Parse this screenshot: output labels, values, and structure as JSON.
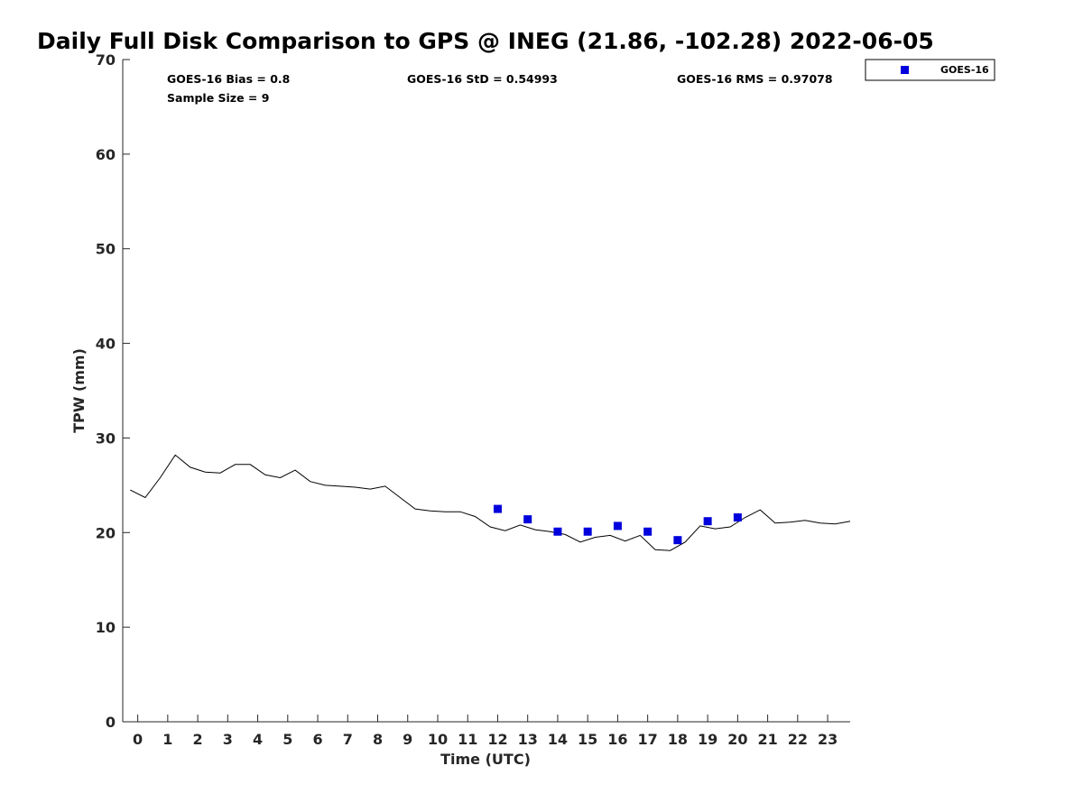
{
  "chart_data": {
    "type": "line",
    "title": "Daily Full Disk Comparison to GPS @ INEG (21.86, -102.28) 2022-06-05",
    "xlabel": "Time (UTC)",
    "ylabel": "TPW (mm)",
    "xlim": [
      -0.5,
      23.75
    ],
    "ylim": [
      0,
      70
    ],
    "xticks": [
      0,
      1,
      2,
      3,
      4,
      5,
      6,
      7,
      8,
      9,
      10,
      11,
      12,
      13,
      14,
      15,
      16,
      17,
      18,
      19,
      20,
      21,
      22,
      23
    ],
    "yticks": [
      0,
      10,
      20,
      30,
      40,
      50,
      60,
      70
    ],
    "grid": false,
    "legend": {
      "position": "top-right outside",
      "entries": [
        "GOES-16"
      ]
    },
    "stats": {
      "bias": "GOES-16 Bias = 0.8",
      "sample_size": "Sample Size = 9",
      "std": "GOES-16 StD = 0.54993",
      "rms": "GOES-16 RMS = 0.97078"
    },
    "series": [
      {
        "kind": "line",
        "color": "#000000",
        "x": [
          -0.25,
          0.25,
          0.75,
          1.25,
          1.75,
          2.25,
          2.75,
          3.25,
          3.75,
          4.25,
          4.75,
          5.25,
          5.75,
          6.25,
          6.75,
          7.25,
          7.75,
          8.25,
          8.75,
          9.25,
          9.75,
          10.25,
          10.75,
          11.25,
          11.75,
          12.25,
          12.75,
          13.25,
          13.75,
          14.25,
          14.75,
          15.25,
          15.75,
          16.25,
          16.75,
          17.25,
          17.75,
          18.25,
          18.75,
          19.25,
          19.75,
          20.25,
          20.75,
          21.25,
          21.75,
          22.25,
          22.75,
          23.25,
          23.75
        ],
        "values": [
          24.5,
          23.7,
          25.8,
          28.2,
          26.9,
          26.4,
          26.3,
          27.2,
          27.2,
          26.1,
          25.8,
          26.6,
          25.4,
          25.0,
          24.9,
          24.8,
          24.6,
          24.9,
          23.7,
          22.5,
          22.3,
          22.2,
          22.2,
          21.7,
          20.6,
          20.2,
          20.8,
          20.3,
          20.1,
          19.8,
          19.0,
          19.5,
          19.7,
          19.1,
          19.7,
          18.2,
          18.1,
          19.0,
          20.7,
          20.4,
          20.6,
          21.6,
          22.4,
          21.0,
          21.1,
          21.3,
          21.0,
          20.9,
          21.2
        ]
      },
      {
        "name": "GOES-16",
        "kind": "scatter",
        "color": "#0000dd",
        "x": [
          12,
          13,
          14,
          15,
          16,
          17,
          18,
          19,
          20
        ],
        "values": [
          22.5,
          21.4,
          20.1,
          20.1,
          20.7,
          20.1,
          19.2,
          21.2,
          21.6
        ]
      }
    ]
  }
}
